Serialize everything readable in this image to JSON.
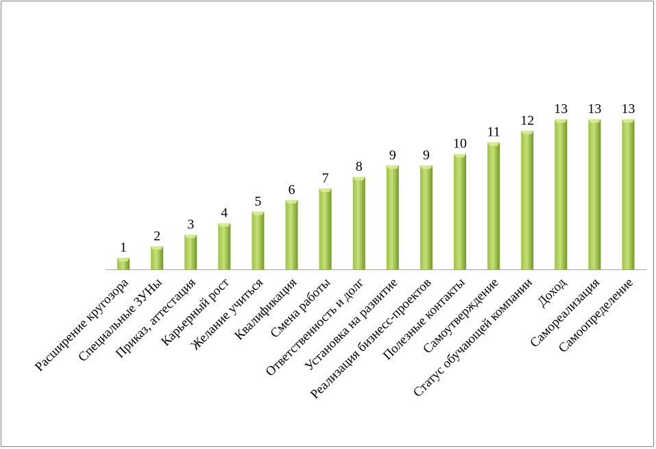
{
  "chart_data": {
    "type": "bar",
    "categories": [
      "Расширение кругозора",
      "Специальные ЗУНы",
      "Приказ, аттестация",
      "Карьерный рост",
      "Желание учиться",
      "Квалификация",
      "Смена работы",
      "Ответственность и долг",
      "Установка на развитие",
      "Реализация бизнесс-проектов",
      "Полезные контакты",
      "Самоутверждение",
      "Статус обучающей компании",
      "Доход",
      "Самореализация",
      "Самоопределение"
    ],
    "values": [
      1,
      2,
      3,
      4,
      5,
      6,
      7,
      8,
      9,
      9,
      10,
      11,
      12,
      13,
      13,
      13
    ],
    "title": "",
    "xlabel": "",
    "ylabel": "",
    "ylim": [
      0,
      13
    ],
    "grid": false,
    "legend": "none",
    "colors": {
      "bar_light": "#c6e07a",
      "bar_mid": "#9cc33f",
      "bar_dark": "#6f9a1e",
      "bar_top": "#d9ee9a",
      "axis": "#a6a6a6"
    }
  }
}
